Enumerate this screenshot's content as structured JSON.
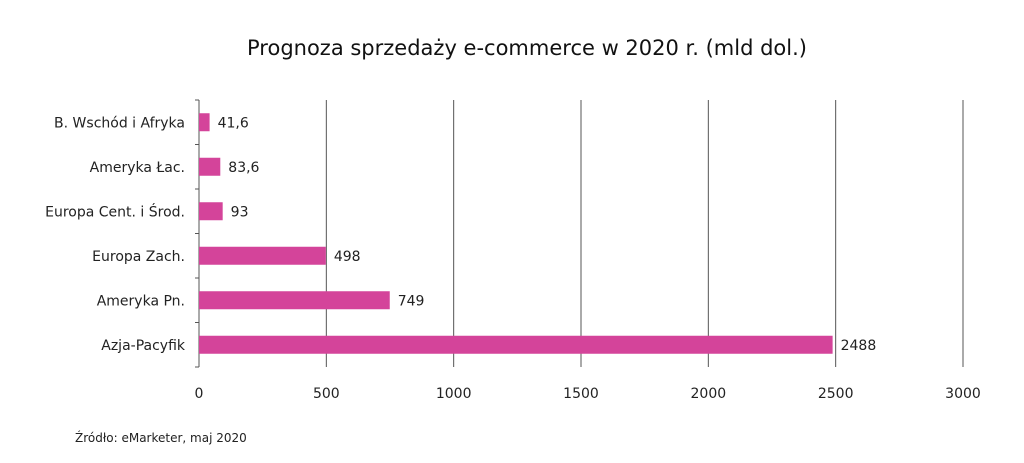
{
  "chart_data": {
    "type": "bar",
    "orientation": "horizontal",
    "title": "Prognoza sprzedaży e-commerce  w 2020 r. (mld dol.)",
    "categories": [
      "B. Wschód i Afryka",
      "Ameryka Łac.",
      "Europa Cent. i Środ.",
      "Europa Zach.",
      "Ameryka Pn.",
      "Azja-Pacyfik"
    ],
    "values": [
      41.6,
      83.6,
      93,
      498,
      749,
      2488
    ],
    "value_labels": [
      "41,6",
      "83,6",
      "93",
      "498",
      "749",
      "2488"
    ],
    "xlim": [
      0,
      3000
    ],
    "xticks": [
      0,
      500,
      1000,
      1500,
      2000,
      2500,
      3000
    ],
    "xlabel": "",
    "ylabel": "",
    "grid": "vertical",
    "bar_color": "#d4449a",
    "source": "Źródło: eMarketer, maj 2020"
  }
}
